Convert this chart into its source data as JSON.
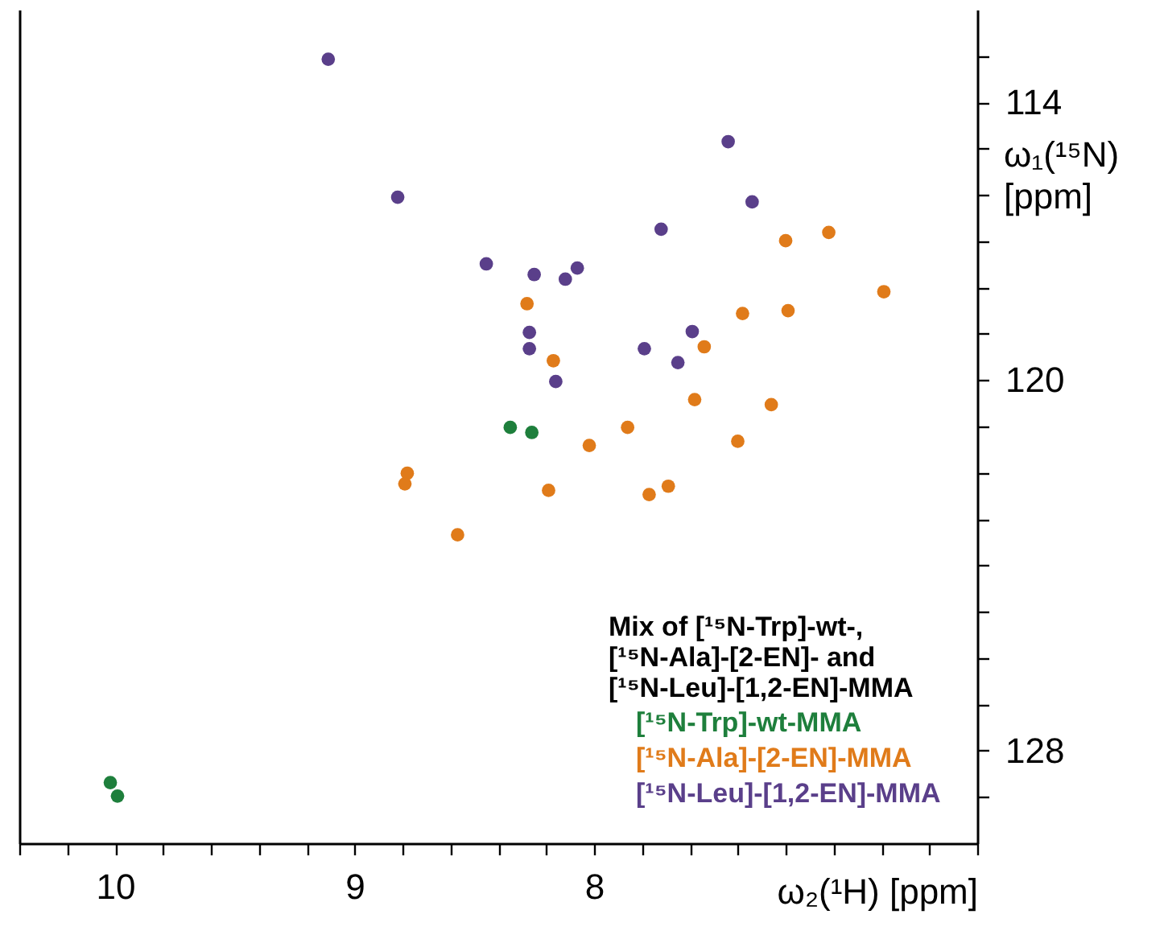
{
  "chart_data": {
    "type": "scatter",
    "xlabel": "ω₂(¹H) [ppm]",
    "ylabel": "ω₁(¹⁵N)\n[ppm]",
    "legend_title": "Mix of [¹⁵N-Trp]-wt-,\n[¹⁵N-Ala]-[2-EN]- and\n[¹⁵N-Leu]-[1,2-EN]-MMA",
    "legend": "bottom right",
    "marker": "circle",
    "xlim": [
      10.4,
      6.4
    ],
    "ylim": [
      130,
      112
    ],
    "xticks": [
      {
        "value": 10.4,
        "label": null
      },
      {
        "value": 10.2,
        "label": null
      },
      10,
      {
        "value": 9.8,
        "label": null
      },
      {
        "value": 9.6,
        "label": null
      },
      {
        "value": 9.4,
        "label": null
      },
      {
        "value": 9.2,
        "label": null
      },
      9,
      {
        "value": 8.8,
        "label": null
      },
      {
        "value": 8.6,
        "label": null
      },
      {
        "value": 8.4,
        "label": null
      },
      {
        "value": 8.2,
        "label": null
      },
      8,
      {
        "value": 7.8,
        "label": null
      },
      {
        "value": 7.6,
        "label": null
      },
      {
        "value": 7.4,
        "label": null
      },
      {
        "value": 7.2,
        "label": null
      },
      {
        "value": 7,
        "label": null
      },
      {
        "value": 6.8,
        "label": null
      },
      {
        "value": 6.6,
        "label": null
      },
      {
        "value": 6.4,
        "label": null
      }
    ],
    "yticks": [
      {
        "value": 113,
        "label": null
      },
      114,
      {
        "value": 115,
        "label": null
      },
      {
        "value": 116,
        "label": null
      },
      {
        "value": 117,
        "label": null
      },
      {
        "value": 118,
        "label": null
      },
      {
        "value": 119,
        "label": null
      },
      120,
      {
        "value": 121,
        "label": null
      },
      {
        "value": 122,
        "label": null
      },
      {
        "value": 123,
        "label": null
      },
      {
        "value": 124,
        "label": null
      },
      {
        "value": 125,
        "label": null
      },
      {
        "value": 126,
        "label": null
      },
      {
        "value": 127,
        "label": null
      },
      128,
      {
        "value": 129,
        "label": null
      }
    ],
    "series": [
      {
        "name": "[¹⁵N-Trp]-wt-MMA",
        "color": "#1e7f3c",
        "x": [
          8.35,
          8.26,
          10.02,
          9.99
        ],
        "values": [
          121.02,
          121.13,
          128.69,
          128.98
        ]
      },
      {
        "name": "[¹⁵N-Ala]-[2-EN]-MMA",
        "color": "#e07b1a",
        "x": [
          7.02,
          7.2,
          6.79,
          7.38,
          7.19,
          8.28,
          7.54,
          8.17,
          7.58,
          7.26,
          7.86,
          8.02,
          7.4,
          8.78,
          8.79,
          8.19,
          7.69,
          7.77,
          8.57
        ],
        "values": [
          116.81,
          116.99,
          118.09,
          118.56,
          118.5,
          118.35,
          119.28,
          119.58,
          120.42,
          120.53,
          121.02,
          121.41,
          121.32,
          122.01,
          122.24,
          122.38,
          122.29,
          122.47,
          123.34
        ]
      },
      {
        "name": "[¹⁵N-Leu]-[1,2-EN]-MMA",
        "color": "#5a3f8a",
        "x": [
          9.11,
          8.82,
          7.44,
          7.34,
          7.72,
          8.45,
          8.25,
          8.07,
          8.12,
          7.59,
          8.27,
          8.27,
          7.79,
          8.16,
          7.65
        ],
        "values": [
          113.07,
          116.05,
          114.85,
          116.15,
          116.74,
          117.49,
          117.72,
          117.58,
          117.82,
          118.95,
          118.97,
          119.32,
          119.32,
          120.03,
          119.62
        ]
      }
    ]
  }
}
